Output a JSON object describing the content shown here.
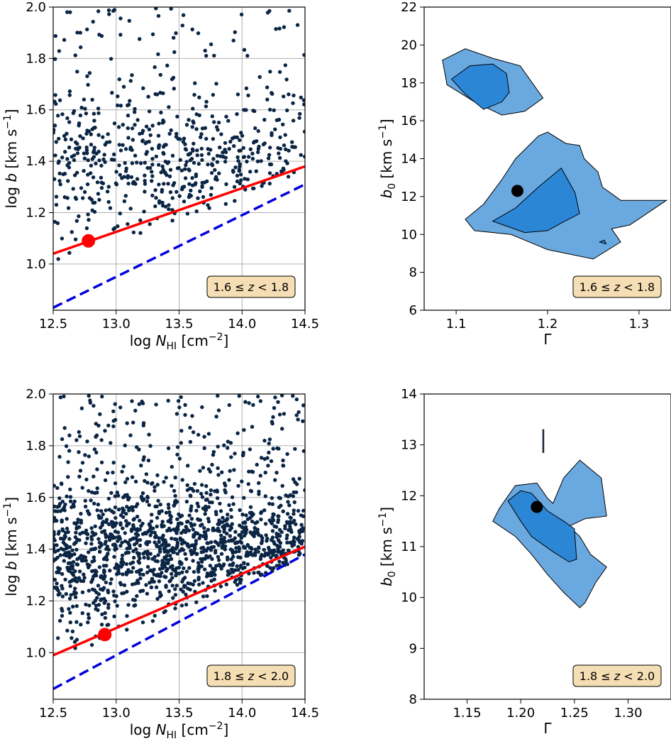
{
  "figure": {
    "point_color": "#0b2545",
    "contour_outer_color": "#6aa9e0",
    "contour_inner_color": "#2c86d6",
    "fit_line_color": "#ff0000",
    "cutoff_line_color": "#0000dd",
    "label_box_color": "#f5deb3"
  },
  "chart_data": [
    {
      "type": "scatter",
      "panel": "top-left",
      "xlabel": "log N_HI [cm^-2]",
      "ylabel": "log b [km s^-1]",
      "xlim": [
        12.5,
        14.5
      ],
      "ylim": [
        0.82,
        2.0
      ],
      "xticks": [
        "12.5",
        "13.0",
        "13.5",
        "14.0",
        "14.5"
      ],
      "yticks": [
        "1.0",
        "1.2",
        "1.4",
        "1.6",
        "1.8",
        "2.0"
      ],
      "grid": true,
      "label": "1.6 ≤ z < 1.8",
      "label_position": "bottom-right",
      "seed": 11,
      "n_points": 620,
      "cloud_center_y": 1.4,
      "fit_line": {
        "x": [
          12.5,
          14.5
        ],
        "y": [
          1.04,
          1.38
        ]
      },
      "cutoff_line": {
        "x": [
          12.5,
          14.5
        ],
        "y": [
          0.83,
          1.31
        ]
      },
      "marker": {
        "x": 12.78,
        "y": 1.09
      }
    },
    {
      "type": "contour",
      "panel": "top-right",
      "xlabel": "Γ",
      "ylabel": "b_0 [km s^-1]",
      "xlim": [
        1.065,
        1.335
      ],
      "ylim": [
        6,
        22
      ],
      "xticks": [
        "1.1",
        "1.2",
        "1.3"
      ],
      "yticks": [
        "6",
        "8",
        "10",
        "12",
        "14",
        "16",
        "18",
        "20",
        "22"
      ],
      "grid": false,
      "label": "1.6 ≤ z < 1.8",
      "label_position": "bottom-right",
      "best_fit": {
        "x": 1.167,
        "y": 12.3
      },
      "outer_regions": [
        [
          [
            1.085,
            19.2
          ],
          [
            1.11,
            19.8
          ],
          [
            1.14,
            19.3
          ],
          [
            1.17,
            18.9
          ],
          [
            1.195,
            17.2
          ],
          [
            1.175,
            16.5
          ],
          [
            1.15,
            16.3
          ],
          [
            1.12,
            17.0
          ],
          [
            1.09,
            17.9
          ],
          [
            1.085,
            19.2
          ]
        ],
        [
          [
            1.11,
            10.8
          ],
          [
            1.13,
            11.6
          ],
          [
            1.15,
            12.9
          ],
          [
            1.165,
            14.0
          ],
          [
            1.19,
            15.2
          ],
          [
            1.2,
            15.4
          ],
          [
            1.22,
            14.8
          ],
          [
            1.235,
            14.7
          ],
          [
            1.24,
            14.0
          ],
          [
            1.255,
            13.3
          ],
          [
            1.26,
            12.5
          ],
          [
            1.28,
            11.8
          ],
          [
            1.33,
            11.8
          ],
          [
            1.29,
            10.5
          ],
          [
            1.27,
            10.3
          ],
          [
            1.28,
            9.6
          ],
          [
            1.25,
            8.7
          ],
          [
            1.2,
            9.2
          ],
          [
            1.16,
            10.0
          ],
          [
            1.12,
            10.2
          ],
          [
            1.11,
            10.8
          ]
        ]
      ],
      "inner_regions": [
        [
          [
            1.095,
            18.2
          ],
          [
            1.115,
            18.9
          ],
          [
            1.14,
            19.0
          ],
          [
            1.155,
            18.5
          ],
          [
            1.158,
            17.5
          ],
          [
            1.15,
            17.0
          ],
          [
            1.13,
            16.6
          ],
          [
            1.11,
            17.4
          ],
          [
            1.095,
            18.2
          ]
        ],
        [
          [
            1.14,
            10.7
          ],
          [
            1.165,
            11.4
          ],
          [
            1.19,
            12.5
          ],
          [
            1.215,
            13.5
          ],
          [
            1.23,
            12.2
          ],
          [
            1.235,
            11.1
          ],
          [
            1.215,
            10.6
          ],
          [
            1.2,
            10.2
          ],
          [
            1.175,
            10.1
          ],
          [
            1.14,
            10.7
          ]
        ],
        [
          [
            1.257,
            9.6
          ],
          [
            1.262,
            9.7
          ],
          [
            1.264,
            9.5
          ],
          [
            1.257,
            9.6
          ]
        ]
      ]
    },
    {
      "type": "scatter",
      "panel": "bottom-left",
      "xlabel": "log N_HI [cm^-2]",
      "ylabel": "log b [km s^-1]",
      "xlim": [
        12.5,
        14.5
      ],
      "ylim": [
        0.82,
        2.0
      ],
      "xticks": [
        "12.5",
        "13.0",
        "13.5",
        "14.0",
        "14.5"
      ],
      "yticks": [
        "1.0",
        "1.2",
        "1.4",
        "1.6",
        "1.8",
        "2.0"
      ],
      "grid": true,
      "label": "1.8 ≤ z < 2.0",
      "label_position": "bottom-right",
      "seed": 29,
      "n_points": 1500,
      "cloud_center_y": 1.4,
      "fit_line": {
        "x": [
          12.5,
          14.5
        ],
        "y": [
          0.99,
          1.41
        ]
      },
      "cutoff_line": {
        "x": [
          12.5,
          14.5
        ],
        "y": [
          0.86,
          1.38
        ]
      },
      "marker": {
        "x": 12.91,
        "y": 1.07
      }
    },
    {
      "type": "contour",
      "panel": "bottom-right",
      "xlabel": "Γ",
      "ylabel": "b_0 [km s^-1]",
      "xlim": [
        1.11,
        1.34
      ],
      "ylim": [
        8,
        14
      ],
      "xticks": [
        "1.15",
        "1.20",
        "1.25",
        "1.30"
      ],
      "yticks": [
        "8",
        "9",
        "10",
        "11",
        "12",
        "13",
        "14"
      ],
      "grid": false,
      "label": "1.8 ≤ z < 2.0",
      "label_position": "bottom-right",
      "best_fit": {
        "x": 1.215,
        "y": 11.78
      },
      "outer_regions": [
        [
          [
            1.174,
            11.5
          ],
          [
            1.18,
            11.75
          ],
          [
            1.195,
            12.2
          ],
          [
            1.215,
            12.25
          ],
          [
            1.225,
            11.95
          ],
          [
            1.23,
            11.85
          ],
          [
            1.24,
            12.35
          ],
          [
            1.255,
            12.7
          ],
          [
            1.275,
            12.35
          ],
          [
            1.28,
            11.6
          ],
          [
            1.26,
            11.55
          ],
          [
            1.245,
            11.4
          ],
          [
            1.255,
            11.2
          ],
          [
            1.265,
            10.85
          ],
          [
            1.28,
            10.6
          ],
          [
            1.27,
            10.3
          ],
          [
            1.26,
            9.9
          ],
          [
            1.255,
            9.8
          ],
          [
            1.24,
            10.1
          ],
          [
            1.225,
            10.45
          ],
          [
            1.21,
            10.85
          ],
          [
            1.195,
            11.2
          ],
          [
            1.174,
            11.5
          ]
        ],
        [
          [
            1.2205,
            12.85
          ],
          [
            1.2215,
            12.85
          ],
          [
            1.2215,
            13.3
          ],
          [
            1.2205,
            13.3
          ],
          [
            1.2205,
            12.85
          ]
        ]
      ],
      "inner_regions": [
        [
          [
            1.188,
            11.9
          ],
          [
            1.2,
            12.1
          ],
          [
            1.21,
            12.05
          ],
          [
            1.225,
            11.7
          ],
          [
            1.24,
            11.5
          ],
          [
            1.25,
            11.35
          ],
          [
            1.252,
            10.75
          ],
          [
            1.245,
            10.7
          ],
          [
            1.23,
            10.9
          ],
          [
            1.21,
            11.2
          ],
          [
            1.2,
            11.5
          ],
          [
            1.188,
            11.9
          ]
        ]
      ]
    }
  ]
}
